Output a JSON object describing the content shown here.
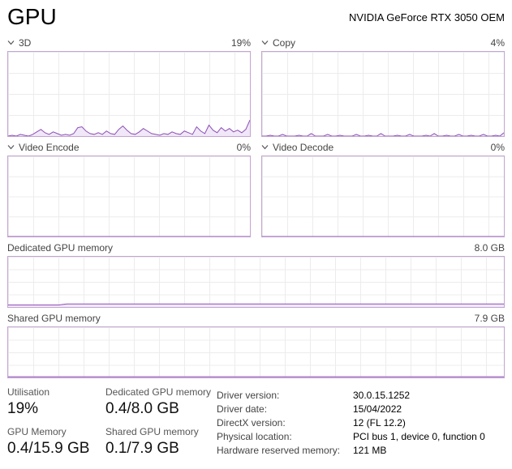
{
  "header": {
    "title": "GPU",
    "gpu_name": "NVIDIA GeForce RTX 3050 OEM"
  },
  "charts": {
    "d3": {
      "label": "3D",
      "value": "19%",
      "series": [
        0,
        1,
        0,
        2,
        1,
        0,
        2,
        5,
        8,
        4,
        2,
        5,
        3,
        1,
        2,
        1,
        3,
        10,
        11,
        6,
        3,
        2,
        4,
        2,
        6,
        3,
        2,
        8,
        12,
        7,
        3,
        2,
        5,
        9,
        6,
        3,
        2,
        1,
        3,
        2,
        5,
        3,
        2,
        6,
        4,
        2,
        11,
        6,
        3,
        13,
        7,
        4,
        10,
        6,
        9,
        5,
        7,
        4,
        8,
        19
      ]
    },
    "copy": {
      "label": "Copy",
      "value": "4%",
      "series": [
        0,
        0,
        1,
        0,
        0,
        2,
        0,
        0,
        0,
        1,
        0,
        0,
        3,
        0,
        0,
        0,
        2,
        0,
        0,
        1,
        0,
        0,
        0,
        2,
        0,
        0,
        1,
        0,
        0,
        3,
        0,
        0,
        0,
        1,
        0,
        0,
        2,
        0,
        0,
        0,
        1,
        0,
        3,
        0,
        0,
        1,
        0,
        0,
        2,
        0,
        0,
        1,
        0,
        0,
        2,
        0,
        0,
        1,
        0,
        4
      ]
    },
    "video_encode": {
      "label": "Video Encode",
      "value": "0%",
      "series": [
        0,
        0
      ]
    },
    "video_decode": {
      "label": "Video Decode",
      "value": "0%",
      "series": [
        0,
        0
      ]
    },
    "dedicated_memory": {
      "label": "Dedicated GPU memory",
      "capacity": "8.0 GB",
      "series": [
        4,
        4,
        4,
        4,
        4,
        4,
        4,
        6,
        6,
        6,
        6,
        6,
        6,
        6,
        6,
        6,
        6,
        6,
        6,
        6,
        6,
        6,
        6,
        6,
        6,
        6,
        6,
        6,
        6,
        6,
        6,
        6,
        6,
        6,
        6,
        6,
        6,
        6,
        6,
        6,
        6,
        6,
        6,
        6,
        6,
        6,
        6,
        6,
        6,
        6,
        6,
        6,
        6,
        6,
        6,
        6,
        6,
        6,
        6,
        6
      ]
    },
    "shared_memory": {
      "label": "Shared GPU memory",
      "capacity": "7.9 GB",
      "series": [
        1.5,
        1.5
      ]
    }
  },
  "stats": {
    "utilisation": {
      "label": "Utilisation",
      "value": "19%"
    },
    "gpu_memory": {
      "label": "GPU Memory",
      "value": "0.4/15.9 GB"
    },
    "dedicated_memory": {
      "label": "Dedicated GPU memory",
      "value": "0.4/8.0 GB"
    },
    "shared_memory": {
      "label": "Shared GPU memory",
      "value": "0.1/7.9 GB"
    },
    "details": [
      {
        "label": "Driver version:",
        "value": "30.0.15.1252"
      },
      {
        "label": "Driver date:",
        "value": "15/04/2022"
      },
      {
        "label": "DirectX version:",
        "value": "12 (FL 12.2)"
      },
      {
        "label": "Physical location:",
        "value": "PCI bus 1, device 0, function 0"
      },
      {
        "label": "Hardware reserved memory:",
        "value": "121 MB"
      }
    ]
  },
  "colors": {
    "chart_line": "#8d4fb5",
    "chart_fill": "#f0e7f8",
    "chart_border": "#c3a4d2",
    "grid_line": "#ececec"
  }
}
